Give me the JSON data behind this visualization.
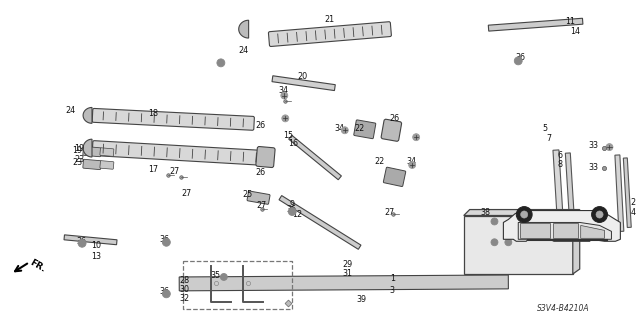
{
  "bg_color": "#ffffff",
  "diagram_code": "S3V4-B4210A",
  "parts_color": "#444444",
  "fill_color": "#cccccc",
  "fill_light": "#e0e0e0",
  "edge_color": "#444444"
}
